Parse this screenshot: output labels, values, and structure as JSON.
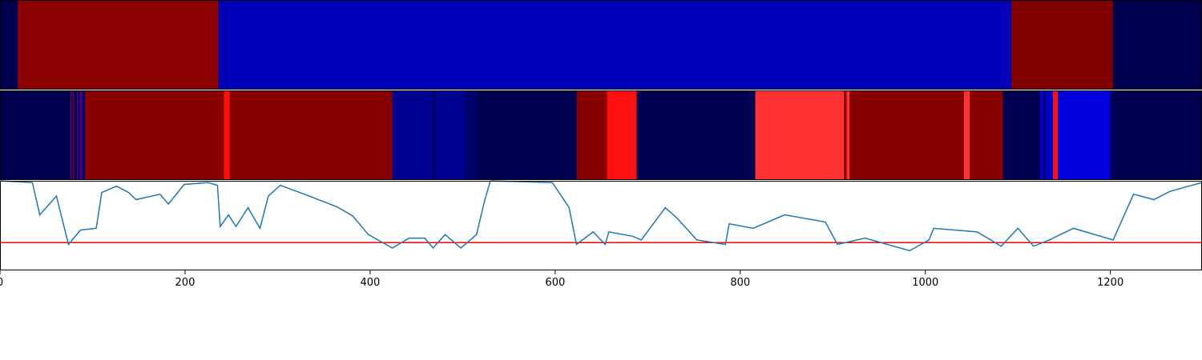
{
  "chart_data": [
    {
      "type": "segments",
      "xlim": [
        0,
        1299
      ],
      "bins": [
        0,
        19,
        236,
        1093,
        1203,
        1299
      ],
      "colors": [
        "#000050",
        "#8b0000",
        "#0000b8",
        "#800000",
        "#000050"
      ]
    },
    {
      "type": "segments",
      "xlim": [
        0,
        1299
      ],
      "bins": [
        0,
        76,
        77,
        79,
        80,
        83,
        84,
        87,
        88,
        90,
        92,
        242,
        248,
        424,
        468,
        470,
        502,
        515,
        623,
        656,
        688,
        816,
        912,
        915,
        918,
        1042,
        1048,
        1084,
        1124,
        1128,
        1130,
        1138,
        1143,
        1200,
        1299
      ],
      "colors": [
        "#000050",
        "#880000",
        "#0000a0",
        "#880000",
        "#000050",
        "#880000",
        "#0000a0",
        "#cc0000",
        "#0000a0",
        "#000050",
        "#880000",
        "#ff1010",
        "#880000",
        "#000090",
        "#000050",
        "#000090",
        "#00006a",
        "#000050",
        "#880000",
        "#ff1010",
        "#000050",
        "#ff3333",
        "#880000",
        "#ff3333",
        "#880000",
        "#ff3333",
        "#880000",
        "#000050",
        "#0000cc",
        "#000050",
        "#0000cc",
        "#ff1010",
        "#0000dd",
        "#000050"
      ]
    },
    {
      "type": "line",
      "xlim": [
        0,
        1299
      ],
      "ylim": [
        0,
        1
      ],
      "color": "#1f77b4",
      "xticks": [
        0,
        200,
        400,
        600,
        800,
        1000,
        1200
      ],
      "hline": {
        "value": 0.31,
        "color": "#ff0000"
      },
      "x": [
        0,
        35,
        43,
        61,
        74,
        87,
        104,
        110,
        126,
        139,
        147,
        173,
        182,
        199,
        225,
        235,
        238,
        247,
        255,
        268,
        281,
        290,
        303,
        329,
        364,
        381,
        398,
        424,
        442,
        459,
        468,
        481,
        498,
        515,
        524,
        530,
        597,
        615,
        623,
        641,
        654,
        658,
        684,
        693,
        719,
        732,
        753,
        784,
        788,
        814,
        848,
        892,
        905,
        935,
        952,
        983,
        1004,
        1009,
        1056,
        1082,
        1100,
        1117,
        1134,
        1160,
        1203,
        1225,
        1247,
        1264,
        1281,
        1299
      ],
      "values": [
        1.0,
        0.98,
        0.62,
        0.83,
        0.29,
        0.45,
        0.47,
        0.87,
        0.94,
        0.87,
        0.79,
        0.85,
        0.74,
        0.96,
        0.98,
        0.95,
        0.49,
        0.62,
        0.49,
        0.7,
        0.47,
        0.83,
        0.95,
        0.85,
        0.71,
        0.61,
        0.4,
        0.25,
        0.36,
        0.36,
        0.25,
        0.4,
        0.25,
        0.4,
        0.79,
        1.0,
        0.98,
        0.7,
        0.29,
        0.43,
        0.29,
        0.43,
        0.38,
        0.34,
        0.7,
        0.58,
        0.34,
        0.29,
        0.52,
        0.47,
        0.62,
        0.54,
        0.29,
        0.36,
        0.31,
        0.22,
        0.34,
        0.47,
        0.43,
        0.27,
        0.47,
        0.27,
        0.34,
        0.47,
        0.34,
        0.85,
        0.79,
        0.88,
        0.93,
        0.98
      ]
    }
  ]
}
